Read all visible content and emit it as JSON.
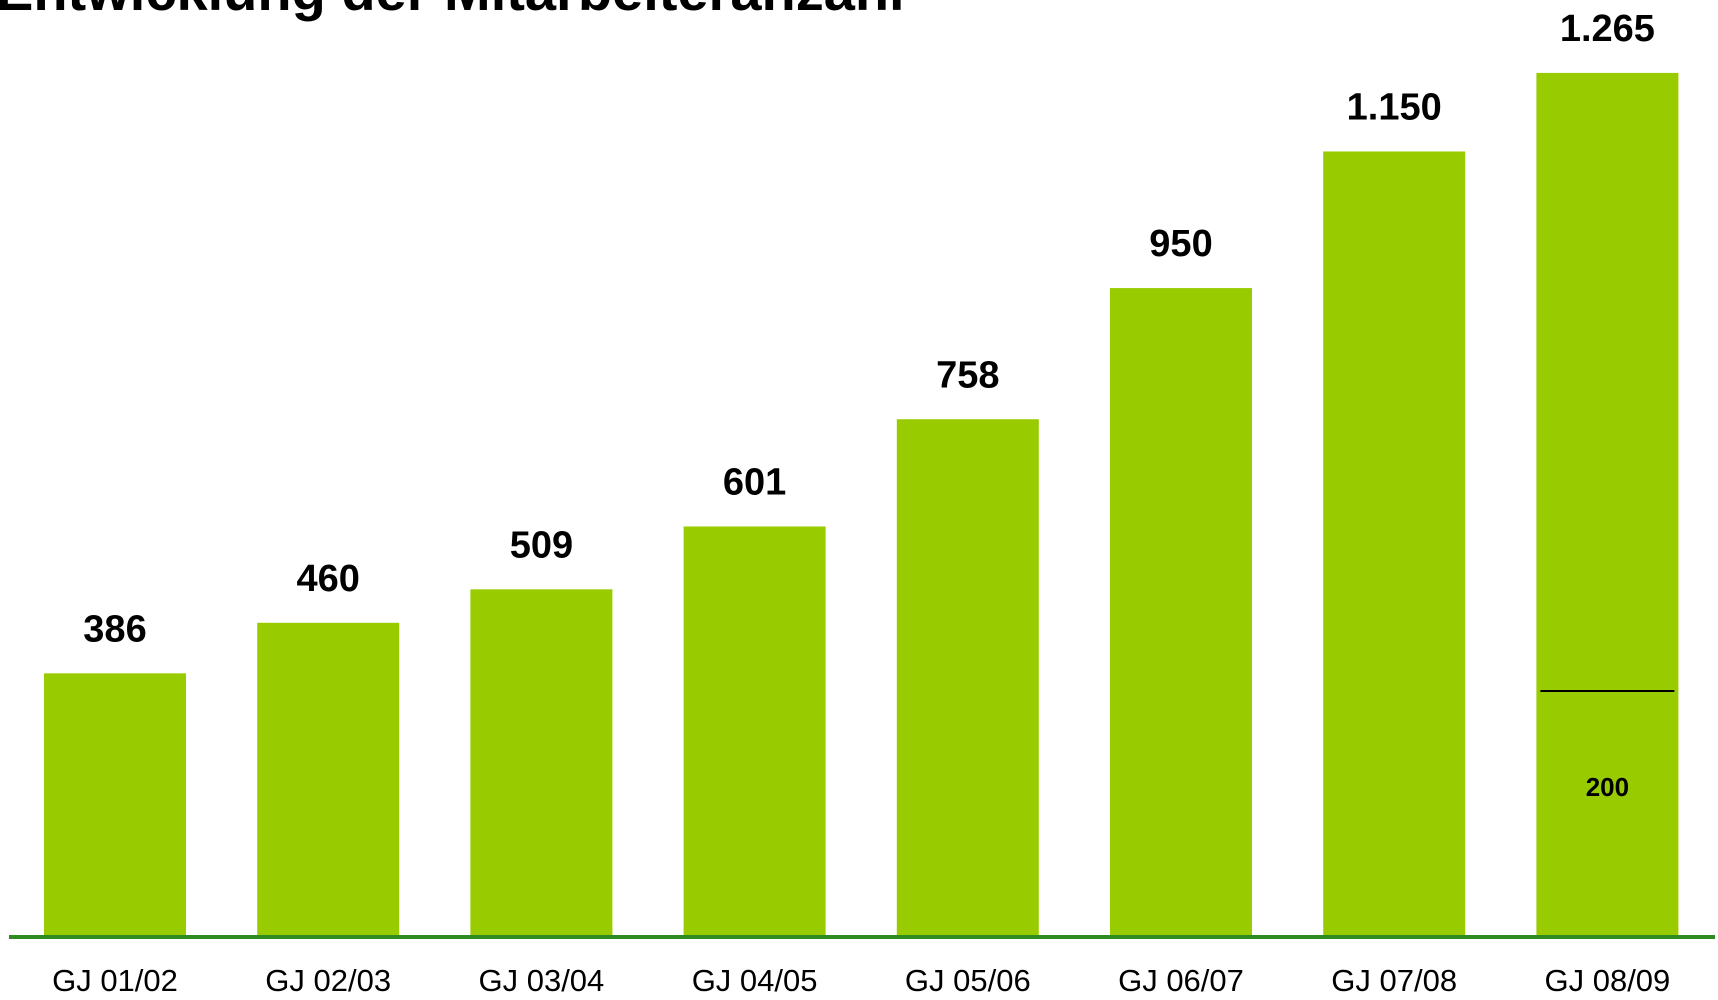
{
  "chart_data": {
    "type": "bar",
    "title": "Entwicklung der Mitarbeiteranzahl",
    "categories": [
      "GJ 01/02",
      "GJ 02/03",
      "GJ 03/04",
      "GJ 04/05",
      "GJ 05/06",
      "GJ 06/07",
      "GJ 07/08",
      "GJ 08/09"
    ],
    "values": [
      386,
      460,
      509,
      601,
      758,
      950,
      1150,
      1265
    ],
    "value_labels": [
      "386",
      "460",
      "509",
      "601",
      "758",
      "950",
      "1.150",
      "1.265"
    ],
    "color": "#99cc00",
    "axis_color": "#2e8b22",
    "ylim": [
      0,
      1300
    ],
    "annotations": [
      {
        "text": "200",
        "category": 7
      }
    ]
  }
}
